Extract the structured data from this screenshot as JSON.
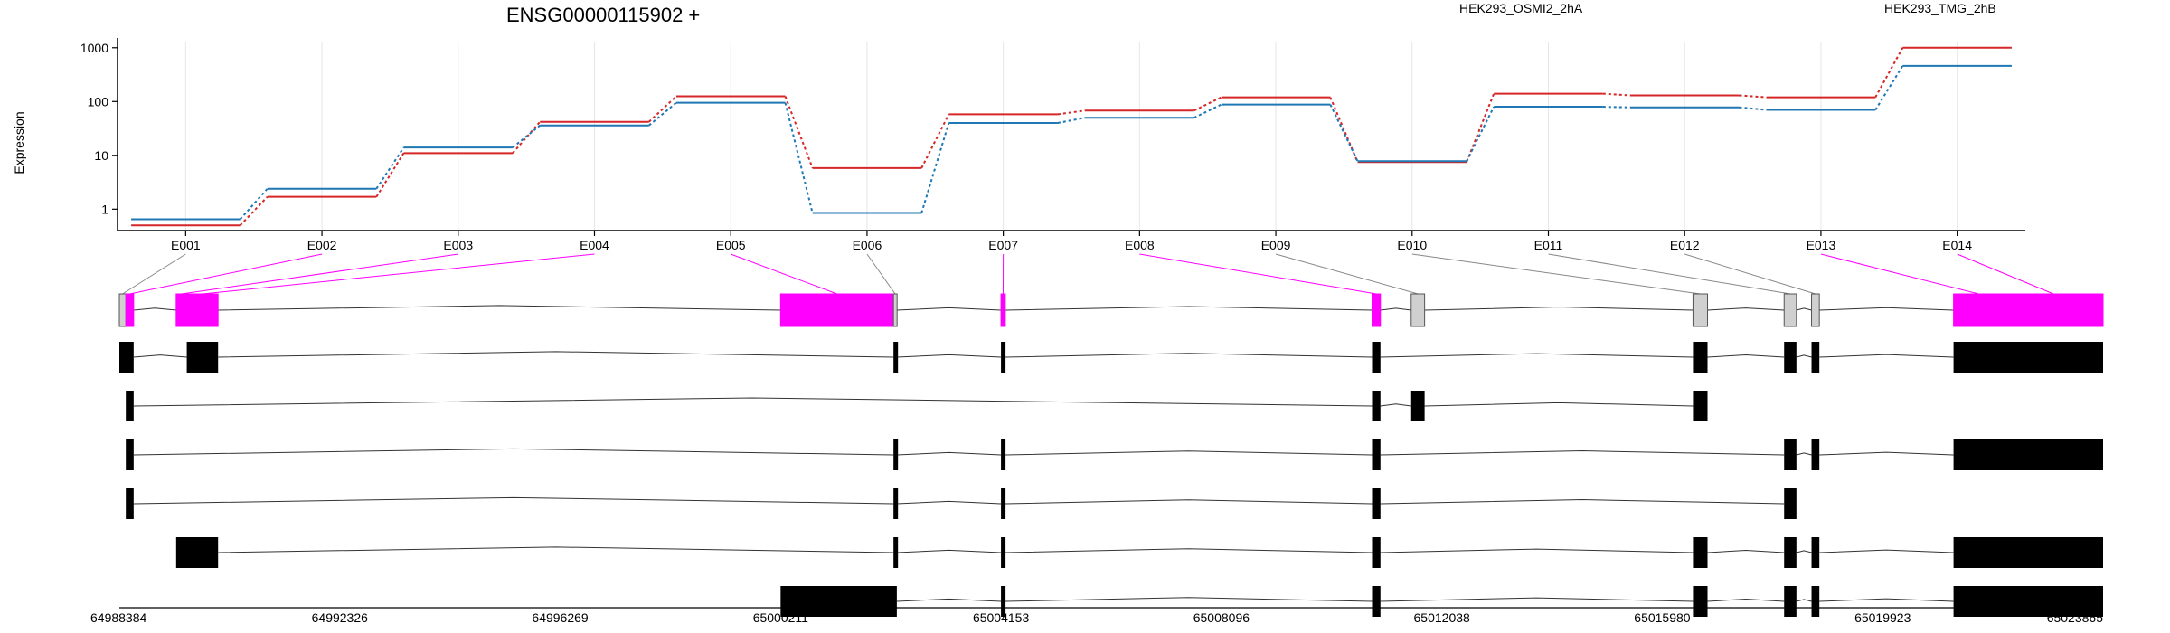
{
  "chart_data": {
    "type": "line",
    "title": "ENSG00000115902 +",
    "ylabel": "Expression",
    "yscale": "log",
    "ylim": [
      0.4,
      1300
    ],
    "yticks": [
      "1",
      "10",
      "100",
      "1000"
    ],
    "ytick_values": [
      1,
      10,
      100,
      1000
    ],
    "grid": "vertical",
    "legend_placement": "top",
    "categories": [
      "E001",
      "E002",
      "E003",
      "E004",
      "E005",
      "E006",
      "E007",
      "E008",
      "E009",
      "E010",
      "E011",
      "E012",
      "E013",
      "E014"
    ],
    "series": [
      {
        "name": "HEK293_OSMI2_2hA",
        "color": "#d62728",
        "values": [
          0.5,
          1.7,
          11,
          42,
          125,
          5.8,
          58,
          68,
          120,
          7.5,
          140,
          130,
          120,
          1000
        ]
      },
      {
        "name": "HEK293_TMG_2hB",
        "color": "#1f77b4",
        "values": [
          0.65,
          2.4,
          14,
          36,
          95,
          0.85,
          40,
          50,
          88,
          7.8,
          80,
          78,
          70,
          460
        ]
      }
    ],
    "genome": {
      "coord_start": 64988384,
      "coord_end": 65023865,
      "coord_labels": [
        "64988384",
        "64992326",
        "64996269",
        "65000211",
        "65004153",
        "65008096",
        "65012038",
        "65015980",
        "65019923",
        "65023865"
      ],
      "highlight_color": "#ff00ff",
      "exons": [
        {
          "id": "E001",
          "start": 64988384,
          "end": 64988500,
          "highlight": false
        },
        {
          "id": "E002",
          "start": 64988500,
          "end": 64988640,
          "highlight": true
        },
        {
          "id": "E003",
          "start": 64989400,
          "end": 64989590,
          "highlight": true
        },
        {
          "id": "E004",
          "start": 64989590,
          "end": 64990150,
          "highlight": true
        },
        {
          "id": "E005",
          "start": 65000211,
          "end": 65002230,
          "highlight": true
        },
        {
          "id": "E006",
          "start": 65002230,
          "end": 65002290,
          "highlight": false
        },
        {
          "id": "E007",
          "start": 65004153,
          "end": 65004230,
          "highlight": true
        },
        {
          "id": "E008",
          "start": 65010790,
          "end": 65010940,
          "highlight": true
        },
        {
          "id": "E009",
          "start": 65011490,
          "end": 65011730,
          "highlight": false
        },
        {
          "id": "E010",
          "start": 65016530,
          "end": 65016790,
          "highlight": false
        },
        {
          "id": "E011",
          "start": 65018160,
          "end": 65018380,
          "highlight": false
        },
        {
          "id": "E012",
          "start": 65018650,
          "end": 65018790,
          "highlight": false
        },
        {
          "id": "E013",
          "start": 65021190,
          "end": 65022090,
          "highlight": true
        },
        {
          "id": "E014",
          "start": 65022090,
          "end": 65023865,
          "highlight": true
        }
      ],
      "transcripts": [
        [
          [
            64988384,
            64988640
          ],
          [
            64989590,
            64990150
          ],
          [
            65002230,
            65002290
          ],
          [
            65004153,
            65004230
          ],
          [
            65010790,
            65010940
          ],
          [
            65016530,
            65016790
          ],
          [
            65018160,
            65018380
          ],
          [
            65018650,
            65018790
          ],
          [
            65021190,
            65023865
          ]
        ],
        [
          [
            64988500,
            64988640
          ],
          [
            65010790,
            65010940
          ],
          [
            65011490,
            65011730
          ],
          [
            65016530,
            65016790
          ]
        ],
        [
          [
            64988500,
            64988640
          ],
          [
            65002230,
            65002290
          ],
          [
            65004153,
            65004230
          ],
          [
            65010790,
            65010940
          ],
          [
            65018160,
            65018380
          ],
          [
            65018650,
            65018790
          ],
          [
            65021190,
            65023865
          ]
        ],
        [
          [
            64988500,
            64988640
          ],
          [
            65002230,
            65002290
          ],
          [
            65004153,
            65004230
          ],
          [
            65010790,
            65010940
          ],
          [
            65018160,
            65018380
          ]
        ],
        [
          [
            64989400,
            64990150
          ],
          [
            65002230,
            65002290
          ],
          [
            65004153,
            65004230
          ],
          [
            65010790,
            65010940
          ],
          [
            65016530,
            65016790
          ],
          [
            65018160,
            65018380
          ],
          [
            65018650,
            65018790
          ],
          [
            65021190,
            65023865
          ]
        ],
        [
          [
            65000211,
            65002290
          ],
          [
            65004153,
            65004230
          ],
          [
            65010790,
            65010940
          ],
          [
            65016530,
            65016790
          ],
          [
            65018160,
            65018380
          ],
          [
            65018650,
            65018790
          ],
          [
            65021190,
            65023865
          ]
        ]
      ]
    }
  }
}
